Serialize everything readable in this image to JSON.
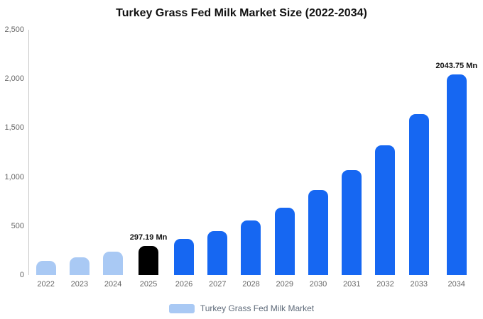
{
  "title": "Turkey Grass Fed Milk Market Size (2022-2034)",
  "legend": {
    "label": "Turkey Grass Fed Milk Market",
    "swatch_color": "#a9c9f4"
  },
  "colors": {
    "light_blue": "#a9c9f4",
    "highlight_black": "#000000",
    "primary_blue": "#1667f2",
    "axis_text": "#666666"
  },
  "chart_data": {
    "type": "bar",
    "title": "Turkey Grass Fed Milk Market Size (2022-2034)",
    "xlabel": "",
    "ylabel": "",
    "ylim": [
      0,
      2500
    ],
    "grid": false,
    "legend_position": "bottom",
    "categories": [
      "2022",
      "2023",
      "2024",
      "2025",
      "2026",
      "2027",
      "2028",
      "2029",
      "2030",
      "2031",
      "2032",
      "2033",
      "2034"
    ],
    "values": [
      145,
      180,
      235,
      297.19,
      365,
      450,
      555,
      685,
      865,
      1070,
      1320,
      1640,
      2043.75
    ],
    "bar_colors": [
      "#a9c9f4",
      "#a9c9f4",
      "#a9c9f4",
      "#000000",
      "#1667f2",
      "#1667f2",
      "#1667f2",
      "#1667f2",
      "#1667f2",
      "#1667f2",
      "#1667f2",
      "#1667f2",
      "#1667f2"
    ],
    "yticks": [
      {
        "value": 0,
        "label": "0"
      },
      {
        "value": 500,
        "label": "500"
      },
      {
        "value": 1000,
        "label": "1,000"
      },
      {
        "value": 1500,
        "label": "1,500"
      },
      {
        "value": 2000,
        "label": "2,000"
      },
      {
        "value": 2500,
        "label": "2,500"
      }
    ],
    "annotations": [
      {
        "category": "2025",
        "text": "297.19 Mn"
      },
      {
        "category": "2034",
        "text": "2043.75 Mn"
      }
    ],
    "series_name": "Turkey Grass Fed Milk Market"
  }
}
